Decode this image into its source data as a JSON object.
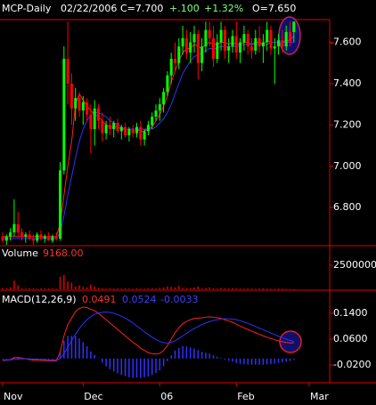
{
  "header": {
    "symbol": "MCP-Daily",
    "date": "02/22/2006",
    "close": "C=7.700",
    "change": "+.100",
    "change_pct": "+1.32%",
    "open": "O=7.650"
  },
  "chart_data": [
    {
      "type": "candlestick",
      "xlim": [
        -0.7,
        85.35
      ],
      "ylim": [
        6.62,
        7.71
      ],
      "yticks": [
        {
          "value": 6.8,
          "label": "6.800"
        },
        {
          "value": 7.0,
          "label": "7.000"
        },
        {
          "value": 7.2,
          "label": "7.200"
        },
        {
          "value": 7.4,
          "label": "7.400"
        },
        {
          "value": 7.6,
          "label": "7.600"
        }
      ],
      "up_color": "#00ff00",
      "down_color": "#ff0000",
      "open": [
        6.66,
        6.64,
        6.66,
        6.68,
        6.72,
        6.68,
        6.66,
        6.67,
        6.65,
        6.64,
        6.67,
        6.65,
        6.66,
        6.64,
        6.66,
        6.65,
        6.98,
        7.52,
        7.4,
        7.28,
        7.33,
        7.27,
        7.31,
        7.25,
        7.18,
        7.28,
        7.22,
        7.16,
        7.2,
        7.18,
        7.21,
        7.17,
        7.19,
        7.15,
        7.18,
        7.16,
        7.19,
        7.13,
        7.17,
        7.2,
        7.24,
        7.27,
        7.3,
        7.36,
        7.44,
        7.52,
        7.5,
        7.58,
        7.62,
        7.55,
        7.6,
        7.64,
        7.5,
        7.58,
        7.66,
        7.62,
        7.52,
        7.6,
        7.66,
        7.56,
        7.58,
        7.63,
        7.55,
        7.6,
        7.64,
        7.58,
        7.56,
        7.62,
        7.58,
        7.6,
        7.66,
        7.57,
        7.58,
        7.61,
        7.58,
        7.65,
        7.65
      ],
      "high": [
        6.68,
        6.67,
        6.7,
        6.84,
        6.78,
        6.7,
        6.68,
        6.69,
        6.67,
        6.68,
        6.69,
        6.67,
        6.68,
        6.67,
        6.68,
        7.02,
        7.58,
        7.7,
        7.45,
        7.38,
        7.36,
        7.34,
        7.33,
        7.3,
        7.32,
        7.3,
        7.26,
        7.22,
        7.24,
        7.22,
        7.23,
        7.2,
        7.21,
        7.19,
        7.2,
        7.21,
        7.22,
        7.18,
        7.22,
        7.26,
        7.3,
        7.33,
        7.38,
        7.46,
        7.55,
        7.6,
        7.62,
        7.68,
        7.66,
        7.65,
        7.68,
        7.66,
        7.62,
        7.7,
        7.7,
        7.68,
        7.64,
        7.7,
        7.68,
        7.62,
        7.66,
        7.7,
        7.62,
        7.68,
        7.66,
        7.62,
        7.66,
        7.68,
        7.64,
        7.7,
        7.68,
        7.62,
        7.64,
        7.66,
        7.68,
        7.7,
        7.7
      ],
      "low": [
        6.63,
        6.62,
        6.64,
        6.66,
        6.66,
        6.64,
        6.63,
        6.64,
        6.62,
        6.63,
        6.64,
        6.63,
        6.64,
        6.63,
        6.64,
        6.64,
        6.96,
        7.3,
        7.2,
        7.22,
        7.24,
        7.2,
        7.22,
        7.06,
        7.1,
        7.18,
        7.12,
        7.13,
        7.15,
        7.14,
        7.16,
        7.13,
        7.14,
        7.12,
        7.14,
        7.14,
        7.1,
        7.1,
        7.15,
        7.18,
        7.22,
        7.22,
        7.26,
        7.34,
        7.4,
        7.46,
        7.47,
        7.54,
        7.52,
        7.5,
        7.55,
        7.42,
        7.46,
        7.55,
        7.58,
        7.48,
        7.5,
        7.56,
        7.52,
        7.5,
        7.55,
        7.52,
        7.5,
        7.56,
        7.54,
        7.52,
        7.54,
        7.55,
        7.5,
        7.56,
        7.54,
        7.4,
        7.54,
        7.55,
        7.56,
        7.58,
        7.6
      ],
      "close": [
        6.64,
        6.66,
        6.68,
        6.72,
        6.68,
        6.66,
        6.67,
        6.65,
        6.64,
        6.67,
        6.65,
        6.66,
        6.64,
        6.66,
        6.65,
        6.98,
        7.52,
        7.4,
        7.28,
        7.33,
        7.27,
        7.31,
        7.25,
        7.18,
        7.28,
        7.22,
        7.16,
        7.2,
        7.18,
        7.21,
        7.17,
        7.19,
        7.15,
        7.18,
        7.16,
        7.19,
        7.13,
        7.17,
        7.2,
        7.24,
        7.27,
        7.3,
        7.36,
        7.44,
        7.52,
        7.5,
        7.58,
        7.62,
        7.55,
        7.6,
        7.64,
        7.5,
        7.58,
        7.66,
        7.62,
        7.52,
        7.6,
        7.66,
        7.56,
        7.58,
        7.63,
        7.55,
        7.6,
        7.64,
        7.58,
        7.56,
        7.62,
        7.58,
        7.6,
        7.66,
        7.57,
        7.58,
        7.61,
        7.58,
        7.65,
        7.6,
        7.7
      ],
      "overlays": [
        {
          "color": "#ff2020",
          "values": [
            6.66,
            6.66,
            6.66,
            6.66,
            6.66,
            6.66,
            6.66,
            6.66,
            6.66,
            6.66,
            6.66,
            6.66,
            6.66,
            6.66,
            6.66,
            6.72,
            6.86,
            7.0,
            7.12,
            7.3,
            7.35,
            7.32,
            7.29,
            7.27,
            7.25,
            7.24,
            7.22,
            7.2,
            7.19,
            7.19,
            7.19,
            7.18,
            7.18,
            7.18,
            7.18,
            7.18,
            7.17,
            7.17,
            7.18,
            7.19,
            7.22,
            7.25,
            7.29,
            7.34,
            7.41,
            7.46,
            7.51,
            7.55,
            7.57,
            7.57,
            7.59,
            7.58,
            7.57,
            7.59,
            7.6,
            7.59,
            7.59,
            7.6,
            7.6,
            7.59,
            7.6,
            7.59,
            7.59,
            7.6,
            7.6,
            7.59,
            7.6,
            7.6,
            7.59,
            7.61,
            7.6,
            7.6,
            7.6,
            7.6,
            7.61,
            7.61,
            7.63
          ]
        },
        {
          "color": "#3030ff",
          "values": [
            6.65,
            6.65,
            6.65,
            6.65,
            6.65,
            6.65,
            6.65,
            6.65,
            6.65,
            6.65,
            6.65,
            6.65,
            6.65,
            6.65,
            6.65,
            6.68,
            6.76,
            6.86,
            6.95,
            7.04,
            7.12,
            7.18,
            7.22,
            7.25,
            7.26,
            7.26,
            7.25,
            7.24,
            7.22,
            7.21,
            7.2,
            7.19,
            7.18,
            7.18,
            7.18,
            7.18,
            7.18,
            7.18,
            7.18,
            7.18,
            7.19,
            7.21,
            7.23,
            7.26,
            7.3,
            7.35,
            7.4,
            7.45,
            7.48,
            7.51,
            7.53,
            7.54,
            7.55,
            7.56,
            7.57,
            7.57,
            7.57,
            7.58,
            7.58,
            7.58,
            7.58,
            7.58,
            7.58,
            7.59,
            7.59,
            7.59,
            7.59,
            7.59,
            7.59,
            7.59,
            7.6,
            7.6,
            7.6,
            7.6,
            7.6,
            7.6,
            7.6
          ]
        }
      ]
    },
    {
      "type": "bar",
      "title": "Volume",
      "readout": "9168.00",
      "color": "#e00000",
      "xlim": [
        -0.7,
        85.35
      ],
      "ylim": [
        0,
        4350000
      ],
      "yticks": [
        2500000
      ],
      "values": [
        150000,
        120000,
        200000,
        900000,
        400000,
        100000,
        80000,
        120000,
        90000,
        60000,
        100000,
        80000,
        70000,
        90000,
        60000,
        1300000,
        1500000,
        800000,
        700000,
        300000,
        400000,
        250000,
        200000,
        500000,
        300000,
        150000,
        100000,
        80000,
        120000,
        90000,
        100000,
        70000,
        110000,
        80000,
        60000,
        90000,
        70000,
        80000,
        100000,
        120000,
        90000,
        150000,
        200000,
        300000,
        250000,
        200000,
        350000,
        150000,
        100000,
        120000,
        200000,
        300000,
        100000,
        150000,
        200000,
        100000,
        80000,
        150000,
        100000,
        90000,
        120000,
        100000,
        80000,
        70000,
        100000,
        90000,
        60000,
        80000,
        100000,
        70000,
        60000,
        50000,
        80000,
        60000,
        50000,
        40000,
        9168
      ]
    },
    {
      "type": "macd",
      "title": "MACD(12,26,9)",
      "xlim": [
        -0.7,
        85.35
      ],
      "ylim": [
        -0.075,
        0.206
      ],
      "yticks": [
        {
          "value": -0.02,
          "label": "-0.0200"
        },
        {
          "value": 0.06,
          "label": "0.0600"
        },
        {
          "value": 0.14,
          "label": "0.1400"
        }
      ],
      "xticks": [
        {
          "value": 0,
          "label": "Nov"
        },
        {
          "value": 21,
          "label": "Dec"
        },
        {
          "value": 41,
          "label": "06"
        },
        {
          "value": 61,
          "label": "Feb"
        },
        {
          "value": 80,
          "label": "Mar"
        }
      ],
      "series": [
        {
          "kind": "line",
          "color": "#ff2020",
          "values": [
            -0.006,
            -0.005,
            -0.004,
            0.002,
            0.003,
            0.001,
            -0.001,
            -0.003,
            -0.005,
            -0.005,
            -0.006,
            -0.006,
            -0.007,
            -0.007,
            -0.007,
            0.02,
            0.07,
            0.105,
            0.125,
            0.145,
            0.155,
            0.159,
            0.158,
            0.152,
            0.148,
            0.14,
            0.13,
            0.12,
            0.11,
            0.1,
            0.09,
            0.08,
            0.07,
            0.06,
            0.05,
            0.042,
            0.032,
            0.025,
            0.018,
            0.015,
            0.014,
            0.016,
            0.025,
            0.04,
            0.06,
            0.08,
            0.095,
            0.108,
            0.115,
            0.12,
            0.124,
            0.125,
            0.126,
            0.128,
            0.129,
            0.128,
            0.126,
            0.124,
            0.12,
            0.116,
            0.112,
            0.106,
            0.1,
            0.095,
            0.09,
            0.085,
            0.08,
            0.075,
            0.07,
            0.066,
            0.062,
            0.058,
            0.055,
            0.052,
            0.05,
            0.048,
            0.0491
          ]
        },
        {
          "kind": "line",
          "color": "#3030ff",
          "values": [
            -0.004,
            -0.004,
            -0.004,
            -0.003,
            -0.002,
            -0.001,
            -0.001,
            -0.001,
            -0.002,
            -0.002,
            -0.003,
            -0.003,
            -0.004,
            -0.004,
            -0.005,
            0.0,
            0.015,
            0.035,
            0.055,
            0.075,
            0.093,
            0.108,
            0.12,
            0.13,
            0.137,
            0.141,
            0.143,
            0.144,
            0.143,
            0.14,
            0.136,
            0.131,
            0.125,
            0.118,
            0.11,
            0.101,
            0.092,
            0.083,
            0.074,
            0.066,
            0.059,
            0.053,
            0.049,
            0.048,
            0.05,
            0.055,
            0.062,
            0.07,
            0.078,
            0.086,
            0.093,
            0.099,
            0.105,
            0.11,
            0.114,
            0.118,
            0.12,
            0.122,
            0.123,
            0.123,
            0.122,
            0.12,
            0.117,
            0.113,
            0.109,
            0.104,
            0.099,
            0.094,
            0.089,
            0.084,
            0.079,
            0.074,
            0.069,
            0.064,
            0.06,
            0.056,
            0.0524
          ]
        },
        {
          "kind": "bar",
          "color": "#3030ff",
          "values": [
            -0.002,
            -0.001,
            0,
            0.005,
            0.005,
            0.002,
            0,
            -0.002,
            -0.003,
            -0.003,
            -0.003,
            -0.003,
            -0.003,
            -0.003,
            -0.002,
            0.02,
            0.055,
            0.07,
            0.07,
            0.07,
            0.062,
            0.051,
            0.038,
            0.022,
            0.011,
            -0.001,
            -0.013,
            -0.024,
            -0.033,
            -0.04,
            -0.046,
            -0.051,
            -0.055,
            -0.058,
            -0.06,
            -0.059,
            -0.06,
            -0.058,
            -0.056,
            -0.051,
            -0.045,
            -0.037,
            -0.024,
            -0.008,
            0.01,
            0.025,
            0.033,
            0.038,
            0.037,
            0.034,
            0.031,
            0.026,
            0.021,
            0.018,
            0.015,
            0.01,
            0.006,
            0.002,
            -0.003,
            -0.007,
            -0.01,
            -0.014,
            -0.017,
            -0.018,
            -0.019,
            -0.019,
            -0.019,
            -0.019,
            -0.019,
            -0.018,
            -0.017,
            -0.016,
            -0.014,
            -0.012,
            -0.01,
            -0.008,
            -0.0033
          ]
        }
      ]
    }
  ]
}
